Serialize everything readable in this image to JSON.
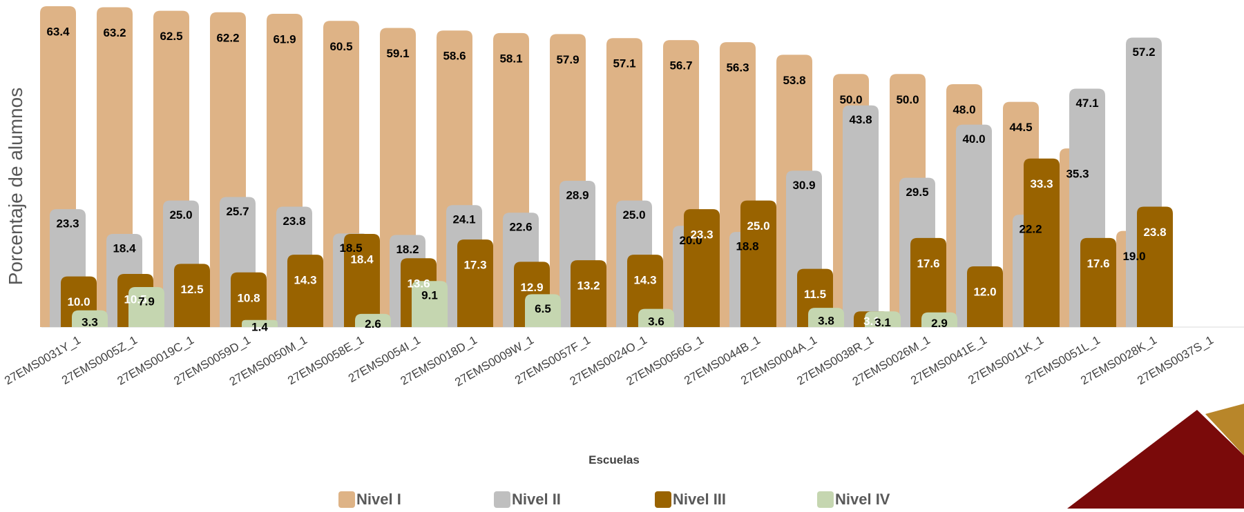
{
  "chart_data": {
    "type": "bar",
    "y_label": "Porcentaje de alumnos",
    "x_label": "Escuelas",
    "categories": [
      "27EMS0031Y_1",
      "27EMS0005Z_1",
      "27EMS0019C_1",
      "27EMS0059D_1",
      "27EMS0050M_1",
      "27EMS0058E_1",
      "27EMS0054I_1",
      "27EMS0018D_1",
      "27EMS0009W_1",
      "27EMS0057F_1",
      "27EMS0024O_1",
      "27EMS0056G_1",
      "27EMS0044B_1",
      "27EMS0004A_1",
      "27EMS0038R_1",
      "27EMS0026M_1",
      "27EMS0041E_1",
      "27EMS0011K_1",
      "27EMS0051L_1",
      "27EMS0028K_1",
      "27EMS0037S_1"
    ],
    "series": [
      {
        "name": "Nivel I",
        "color": "#deb386",
        "label_color": "#000000",
        "values": [
          63.4,
          63.2,
          62.5,
          62.2,
          61.9,
          60.5,
          59.1,
          58.6,
          58.1,
          57.9,
          57.1,
          56.7,
          56.3,
          53.8,
          50.0,
          50.0,
          48.0,
          44.5,
          35.3,
          19.0,
          null
        ],
        "value_labels": [
          "63.4",
          "63.2",
          "62.5",
          "62.2",
          "61.9",
          "60.5",
          "59.1",
          "58.6",
          "58.1",
          "57.9",
          "57.1",
          "56.7",
          "56.3",
          "53.8",
          "50.0",
          "50.0",
          "48.0",
          "44.5",
          "35.3",
          "19.0",
          null
        ]
      },
      {
        "name": "Nivel II",
        "color": "#bfbfbf",
        "label_color": "#000000",
        "values": [
          23.3,
          18.4,
          25.0,
          25.7,
          23.8,
          18.5,
          18.2,
          24.1,
          22.6,
          28.9,
          25.0,
          20.0,
          18.8,
          30.9,
          43.8,
          29.5,
          40.0,
          22.2,
          47.1,
          57.2,
          null
        ],
        "value_labels": [
          "23.3",
          "18.4",
          "25.0",
          "25.7",
          "23.8",
          "18.5",
          "18.2",
          "24.1",
          "22.6",
          "28.9",
          "25.0",
          "20.0",
          "18.8",
          "30.9",
          "43.8",
          "29.5",
          "40.0",
          "22.2",
          "47.1",
          "57.2",
          null
        ]
      },
      {
        "name": "Nivel III",
        "color": "#996300",
        "label_color": "#ffffff",
        "values": [
          10.0,
          10.5,
          12.5,
          10.8,
          14.3,
          18.4,
          13.6,
          17.3,
          12.9,
          13.2,
          14.3,
          23.3,
          25.0,
          11.5,
          3.1,
          17.6,
          12.0,
          33.3,
          17.6,
          23.8,
          null
        ],
        "value_labels": [
          "10.0",
          "10.5",
          "12.5",
          "10.8",
          "14.3",
          "18.4",
          "13.6",
          "17.3",
          "12.9",
          "13.2",
          "14.3",
          "23.3",
          "25.0",
          "11.5",
          "3.1",
          "17.6",
          "12.0",
          "33.3",
          "17.6",
          "23.8",
          null
        ]
      },
      {
        "name": "Nivel IV",
        "color": "#c5d6b0",
        "label_color": "#000000",
        "values": [
          3.3,
          7.9,
          null,
          1.4,
          null,
          2.6,
          9.1,
          null,
          6.5,
          null,
          3.6,
          null,
          null,
          3.8,
          3.1,
          2.9,
          null,
          null,
          null,
          null,
          null
        ],
        "value_labels": [
          "3.3",
          "7.9",
          null,
          "1.4",
          null,
          "2.6",
          "9.1",
          null,
          "6.5",
          null,
          "3.6",
          null,
          null,
          "3.8",
          "3.1",
          "2.9",
          null,
          null,
          null,
          null,
          null
        ]
      }
    ]
  }
}
